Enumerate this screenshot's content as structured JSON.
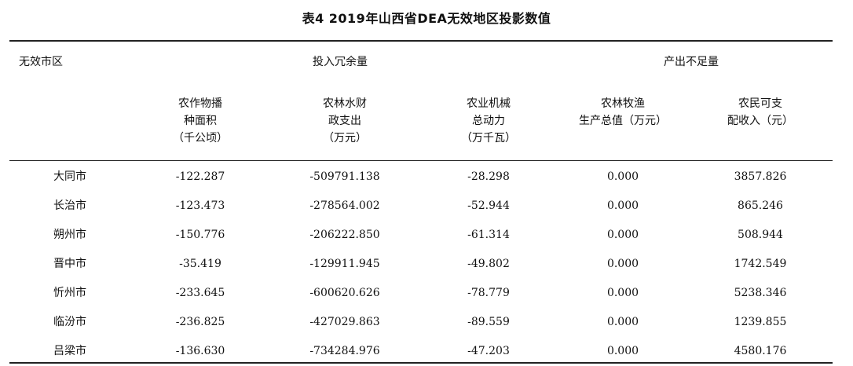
{
  "table": {
    "title": "表4  2019年山西省DEA无效地区投影数值",
    "region_header": "无效市区",
    "input_header": "投入冗余量",
    "output_header": "产出不足量",
    "columns": [
      [
        "农作物播",
        "种面积",
        "（千公顷）"
      ],
      [
        "农林水财",
        "政支出",
        "（万元）"
      ],
      [
        "农业机械",
        "总动力",
        "（万千瓦）"
      ],
      [
        "农林牧渔",
        "生产总值（万元）"
      ],
      [
        "农民可支",
        "配收入（元）"
      ]
    ],
    "rows": [
      [
        "大同市",
        "-122.287",
        "-509791.138",
        "-28.298",
        "0.000",
        "3857.826"
      ],
      [
        "长治市",
        "-123.473",
        "-278564.002",
        "-52.944",
        "0.000",
        "865.246"
      ],
      [
        "朔州市",
        "-150.776",
        "-206222.850",
        "-61.314",
        "0.000",
        "508.944"
      ],
      [
        "晋中市",
        "-35.419",
        "-129911.945",
        "-49.802",
        "0.000",
        "1742.549"
      ],
      [
        "忻州市",
        "-233.645",
        "-600620.626",
        "-78.779",
        "0.000",
        "5238.346"
      ],
      [
        "临汾市",
        "-236.825",
        "-427029.863",
        "-89.559",
        "0.000",
        "1239.855"
      ],
      [
        "吕梁市",
        "-136.630",
        "-734284.976",
        "-47.203",
        "0.000",
        "4580.176"
      ]
    ]
  }
}
